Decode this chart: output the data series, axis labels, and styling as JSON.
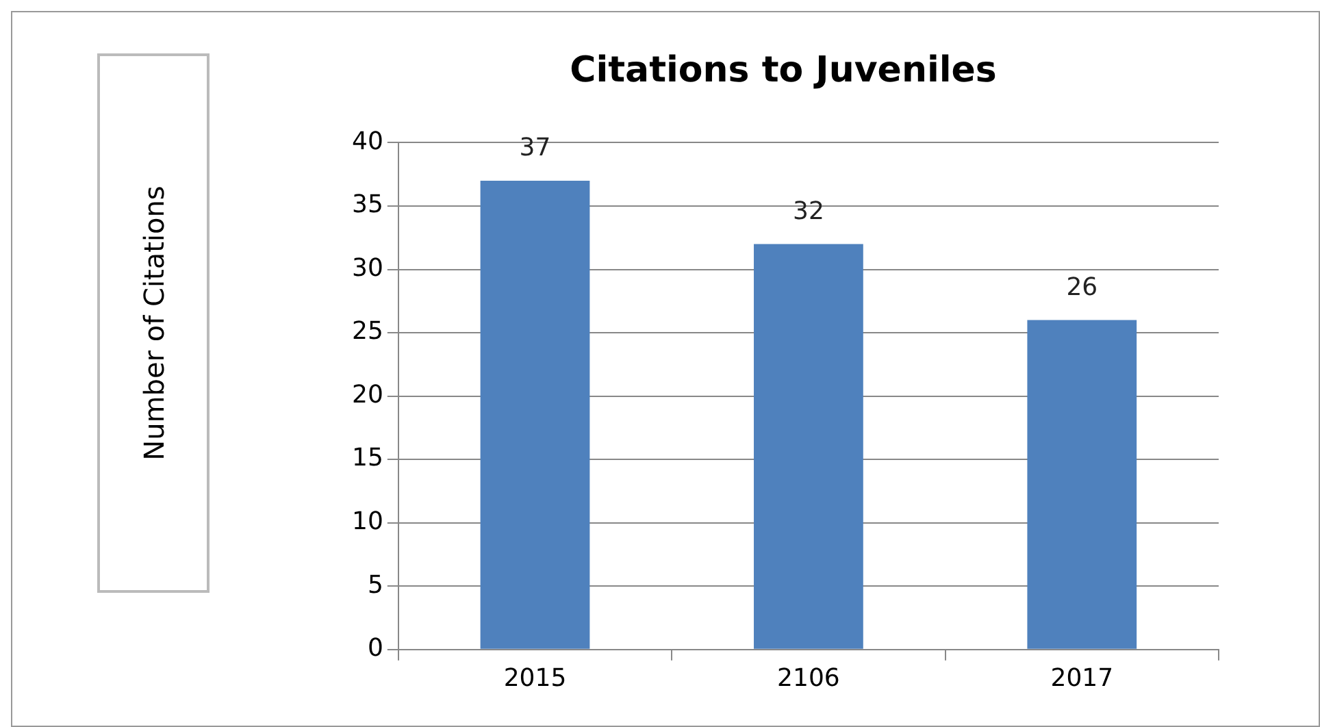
{
  "chart_data": {
    "type": "bar",
    "title": "Citations to Juveniles",
    "annotations": [
      "Number of Citations"
    ],
    "categories": [
      "2015",
      "2106",
      "2017"
    ],
    "values": [
      37,
      32,
      26
    ],
    "color": "#4f81bd",
    "ylim": [
      0,
      40
    ],
    "yticks": [
      0,
      5,
      10,
      15,
      20,
      25,
      30,
      35,
      40
    ],
    "grid": "y",
    "legend": false,
    "data_labels": true
  }
}
